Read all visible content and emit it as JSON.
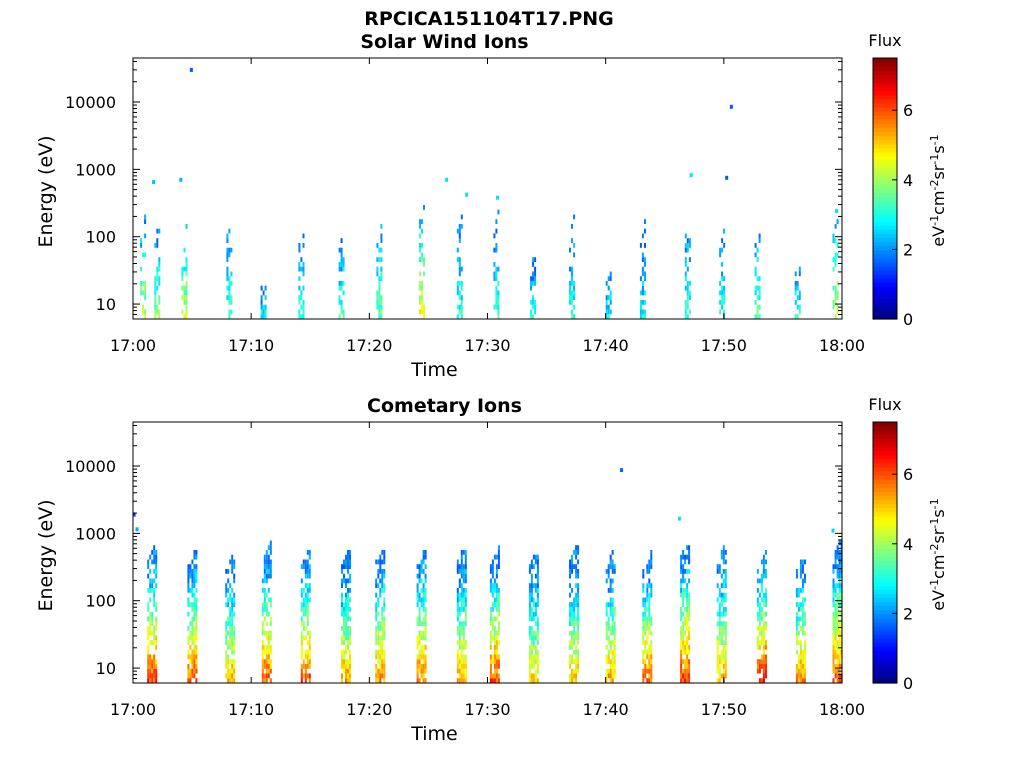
{
  "figure": {
    "title": "RPCICA151104T17.PNG"
  },
  "chart_data": [
    {
      "type": "heatmap",
      "title": "Solar Wind Ions",
      "xlabel": "Time",
      "ylabel": "Energy (eV)",
      "x_range": [
        "17:00",
        "18:00"
      ],
      "x_ticks": [
        "17:00",
        "17:10",
        "17:20",
        "17:30",
        "17:40",
        "17:50",
        "18:00"
      ],
      "y_scale": "log",
      "y_range": [
        6,
        45000
      ],
      "y_ticks": [
        10,
        100,
        1000,
        10000
      ],
      "y_tick_labels": [
        "10",
        "100",
        "1000",
        "10000"
      ],
      "colorbar": {
        "label": "Flux",
        "unit": "eV-1cm-2sr-1s-1",
        "range": [
          0,
          7.5
        ],
        "ticks": [
          0,
          2,
          4,
          6
        ],
        "tick_labels": [
          "0",
          "2",
          "4",
          "6"
        ],
        "colormap": "jet"
      },
      "scan_times_min": [
        0.6,
        1.8,
        4.1,
        7.9,
        10.8,
        14.0,
        17.4,
        20.6,
        24.2,
        27.4,
        30.5,
        33.6,
        36.9,
        40.0,
        42.9,
        46.7,
        49.6,
        52.6,
        56.0,
        59.2
      ],
      "scan_peak_flux": [
        4.6,
        4.3,
        4.8,
        3.8,
        3.4,
        3.6,
        3.8,
        4.1,
        5.2,
        3.6,
        3.8,
        3.4,
        3.7,
        3.4,
        3.3,
        3.8,
        3.4,
        4.0,
        3.8,
        4.7
      ],
      "scan_max_energy": [
        200,
        150,
        150,
        300,
        30,
        200,
        200,
        300,
        280,
        200,
        250,
        80,
        200,
        40,
        200,
        220,
        200,
        200,
        60,
        250
      ],
      "sparse_points": [
        {
          "t": 1.7,
          "e": 650,
          "flux": 2.4
        },
        {
          "t": 4.0,
          "e": 700,
          "flux": 2.3
        },
        {
          "t": 4.9,
          "e": 30000,
          "flux": 1.6
        },
        {
          "t": 26.5,
          "e": 700,
          "flux": 2.6
        },
        {
          "t": 28.2,
          "e": 420,
          "flux": 2.6
        },
        {
          "t": 30.8,
          "e": 380,
          "flux": 2.6
        },
        {
          "t": 47.2,
          "e": 820,
          "flux": 2.6
        },
        {
          "t": 50.2,
          "e": 750,
          "flux": 1.6
        },
        {
          "t": 50.6,
          "e": 8500,
          "flux": 1.6
        },
        {
          "t": 59.5,
          "e": 240,
          "flux": 2.6
        }
      ]
    },
    {
      "type": "heatmap",
      "title": "Cometary Ions",
      "xlabel": "Time",
      "ylabel": "Energy (eV)",
      "x_range": [
        "17:00",
        "18:00"
      ],
      "x_ticks": [
        "17:00",
        "17:10",
        "17:20",
        "17:30",
        "17:40",
        "17:50",
        "18:00"
      ],
      "y_scale": "log",
      "y_range": [
        6,
        45000
      ],
      "y_ticks": [
        10,
        100,
        1000,
        10000
      ],
      "y_tick_labels": [
        "10",
        "100",
        "1000",
        "10000"
      ],
      "colorbar": {
        "label": "Flux",
        "unit": "eV-1cm-2sr-1s-1",
        "range": [
          0,
          7.5
        ],
        "ticks": [
          0,
          2,
          4,
          6
        ],
        "tick_labels": [
          "0",
          "2",
          "4",
          "6"
        ],
        "colormap": "jet"
      },
      "scan_times_min": [
        1.2,
        4.6,
        7.8,
        10.9,
        14.2,
        17.6,
        20.5,
        24.0,
        27.4,
        30.2,
        33.5,
        36.9,
        40.0,
        43.1,
        46.3,
        49.4,
        52.8,
        56.1,
        59.2
      ],
      "scan_peak_flux": [
        6.8,
        6.6,
        5.9,
        6.6,
        6.7,
        6.1,
        6.2,
        6.4,
        5.9,
        6.7,
        5.6,
        5.7,
        6.0,
        6.5,
        6.8,
        5.9,
        7.0,
        6.3,
        6.7
      ],
      "scan_max_energy": [
        700,
        650,
        550,
        750,
        650,
        600,
        700,
        750,
        700,
        650,
        650,
        700,
        650,
        550,
        900,
        700,
        550,
        500,
        900
      ],
      "sparse_points": [
        {
          "t": 0.05,
          "e": 1900,
          "flux": 1.4
        },
        {
          "t": 0.3,
          "e": 1150,
          "flux": 2.2
        },
        {
          "t": 41.3,
          "e": 8700,
          "flux": 1.7
        },
        {
          "t": 46.2,
          "e": 1650,
          "flux": 2.6
        },
        {
          "t": 59.2,
          "e": 1100,
          "flux": 2.5
        }
      ]
    }
  ]
}
